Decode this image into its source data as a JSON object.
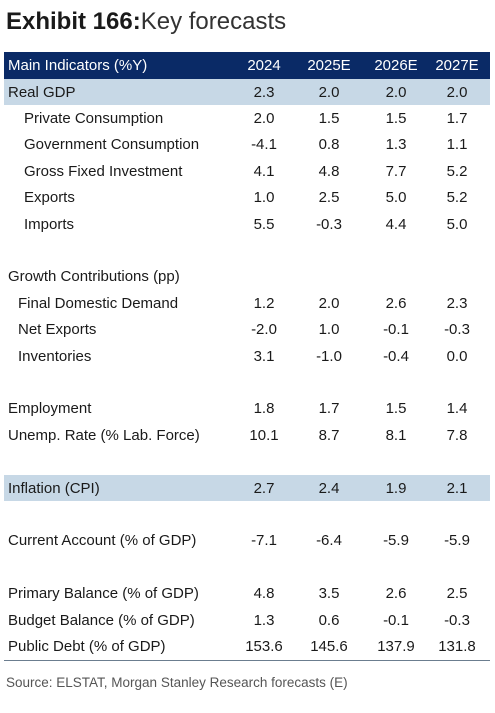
{
  "title": {
    "bold": "Exhibit 166:",
    "rest": "Key forecasts"
  },
  "header": {
    "label": "Main Indicators (%Y)",
    "years": [
      "2024",
      "2025E",
      "2026E",
      "2027E"
    ]
  },
  "rows": [
    {
      "label": "Real GDP",
      "values": [
        "2.3",
        "2.0",
        "2.0",
        "2.0"
      ],
      "indent": 0,
      "highlight": true
    },
    {
      "label": "Private Consumption",
      "values": [
        "2.0",
        "1.5",
        "1.5",
        "1.7"
      ],
      "indent": 2,
      "highlight": false
    },
    {
      "label": "Government Consumption",
      "values": [
        "-4.1",
        "0.8",
        "1.3",
        "1.1"
      ],
      "indent": 2,
      "highlight": false
    },
    {
      "label": "Gross Fixed Investment",
      "values": [
        "4.1",
        "4.8",
        "7.7",
        "5.2"
      ],
      "indent": 2,
      "highlight": false
    },
    {
      "label": "Exports",
      "values": [
        "1.0",
        "2.5",
        "5.0",
        "5.2"
      ],
      "indent": 2,
      "highlight": false
    },
    {
      "label": "Imports",
      "values": [
        "5.5",
        "-0.3",
        "4.4",
        "5.0"
      ],
      "indent": 2,
      "highlight": false
    },
    {
      "label": "",
      "values": [
        "",
        "",
        "",
        ""
      ],
      "indent": 0,
      "highlight": false
    },
    {
      "label": "Growth Contributions (pp)",
      "values": [
        "",
        "",
        "",
        ""
      ],
      "indent": 0,
      "highlight": false
    },
    {
      "label": "Final Domestic Demand",
      "values": [
        "1.2",
        "2.0",
        "2.6",
        "2.3"
      ],
      "indent": 1,
      "highlight": false
    },
    {
      "label": "Net Exports",
      "values": [
        "-2.0",
        "1.0",
        "-0.1",
        "-0.3"
      ],
      "indent": 1,
      "highlight": false
    },
    {
      "label": "Inventories",
      "values": [
        "3.1",
        "-1.0",
        "-0.4",
        "0.0"
      ],
      "indent": 1,
      "highlight": false
    },
    {
      "label": "",
      "values": [
        "",
        "",
        "",
        ""
      ],
      "indent": 0,
      "highlight": false
    },
    {
      "label": "Employment",
      "values": [
        "1.8",
        "1.7",
        "1.5",
        "1.4"
      ],
      "indent": 0,
      "highlight": false
    },
    {
      "label": "Unemp. Rate (% Lab. Force)",
      "values": [
        "10.1",
        "8.7",
        "8.1",
        "7.8"
      ],
      "indent": 0,
      "highlight": false
    },
    {
      "label": "",
      "values": [
        "",
        "",
        "",
        ""
      ],
      "indent": 0,
      "highlight": false
    },
    {
      "label": "Inflation (CPI)",
      "values": [
        "2.7",
        "2.4",
        "1.9",
        "2.1"
      ],
      "indent": 0,
      "highlight": true
    },
    {
      "label": "",
      "values": [
        "",
        "",
        "",
        ""
      ],
      "indent": 0,
      "highlight": false
    },
    {
      "label": "Current Account (% of GDP)",
      "values": [
        "-7.1",
        "-6.4",
        "-5.9",
        "-5.9"
      ],
      "indent": 0,
      "highlight": false
    },
    {
      "label": "",
      "values": [
        "",
        "",
        "",
        ""
      ],
      "indent": 0,
      "highlight": false
    },
    {
      "label": "Primary Balance (% of GDP)",
      "values": [
        "4.8",
        "3.5",
        "2.6",
        "2.5"
      ],
      "indent": 0,
      "highlight": false
    },
    {
      "label": "Budget Balance (% of GDP)",
      "values": [
        "1.3",
        "0.6",
        "-0.1",
        "-0.3"
      ],
      "indent": 0,
      "highlight": false
    },
    {
      "label": "Public Debt (% of GDP)",
      "values": [
        "153.6",
        "145.6",
        "137.9",
        "131.8"
      ],
      "indent": 0,
      "highlight": false
    }
  ],
  "source": "Source: ELSTAT, Morgan Stanley Research forecasts (E)",
  "colors": {
    "header_bg": "#0a2a66",
    "highlight_bg": "#c7d8e6"
  }
}
